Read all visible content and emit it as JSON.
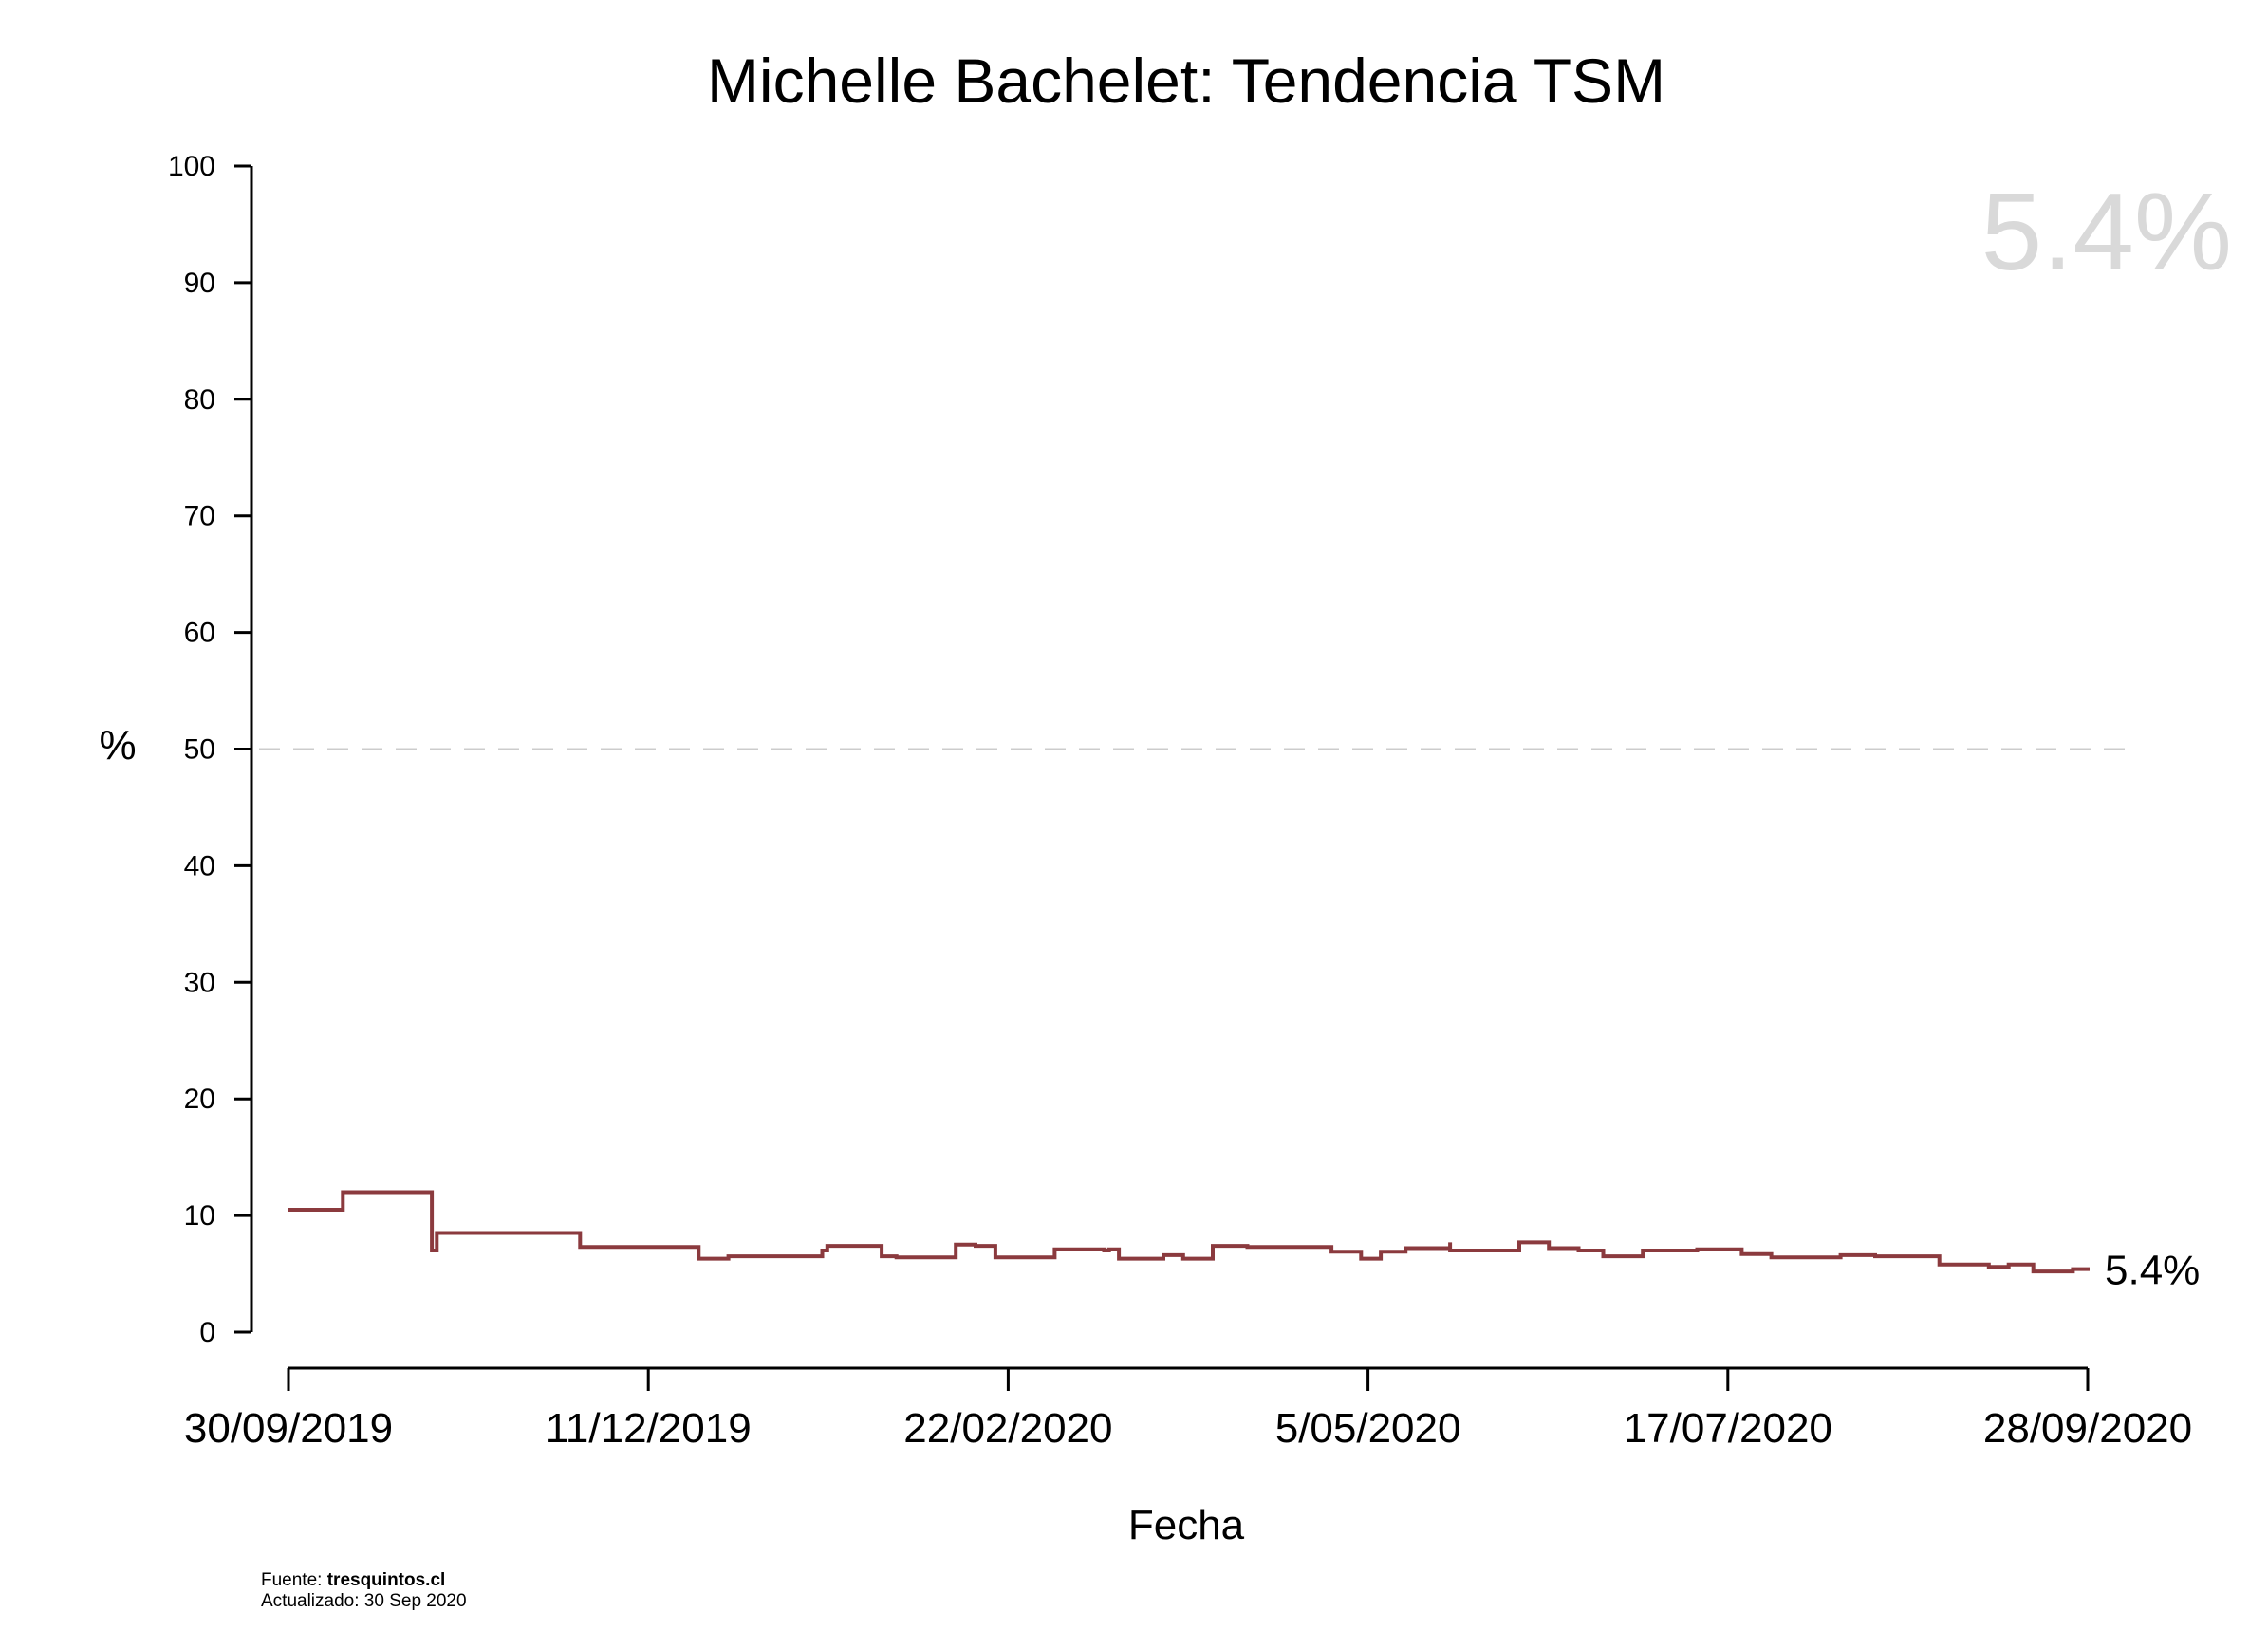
{
  "chart_data": {
    "type": "line",
    "title": "Michelle Bachelet: Tendencia TSM",
    "xlabel": "Fecha",
    "ylabel": "%",
    "ylim": [
      0,
      100
    ],
    "yticks": [
      0,
      10,
      20,
      30,
      40,
      50,
      60,
      70,
      80,
      90,
      100
    ],
    "xlim": [
      "2019-09-30",
      "2020-09-28"
    ],
    "xticks": [
      "30/09/2019",
      "11/12/2019",
      "22/02/2020",
      "5/05/2020",
      "17/07/2020",
      "28/09/2020"
    ],
    "reference_line": 50,
    "grid": false,
    "step": true,
    "line_color": "#8b3a3e",
    "headline_value": "5.4%",
    "end_label": "5.4%",
    "series": [
      {
        "x": [
          "2019-09-30",
          "2019-10-11",
          "2019-10-29",
          "2019-10-30",
          "2019-11-28",
          "2019-12-22",
          "2019-12-28",
          "2020-01-16",
          "2020-01-17",
          "2020-01-28",
          "2020-01-31",
          "2020-02-08",
          "2020-02-12",
          "2020-02-16",
          "2020-02-20",
          "2020-03-03",
          "2020-03-03",
          "2020-03-13",
          "2020-03-14",
          "2020-03-16",
          "2020-03-25",
          "2020-03-29",
          "2020-04-04",
          "2020-04-11",
          "2020-04-16",
          "2020-04-19",
          "2020-04-28",
          "2020-05-04",
          "2020-05-08",
          "2020-05-13",
          "2020-05-21",
          "2020-05-22",
          "2020-05-22",
          "2020-05-26",
          "2020-06-05",
          "2020-06-11",
          "2020-06-17",
          "2020-06-22",
          "2020-06-30",
          "2020-07-11",
          "2020-07-20",
          "2020-07-26",
          "2020-07-30",
          "2020-08-09",
          "2020-08-16",
          "2020-08-18",
          "2020-08-29",
          "2020-09-08",
          "2020-09-12",
          "2020-09-17",
          "2020-09-25"
        ],
        "y": [
          10.5,
          12.0,
          7.0,
          8.5,
          7.3,
          6.3,
          6.5,
          7.0,
          7.4,
          6.5,
          6.4,
          6.4,
          7.5,
          7.4,
          6.4,
          7.0,
          7.1,
          7.0,
          7.1,
          6.3,
          6.6,
          6.3,
          7.4,
          7.3,
          7.3,
          7.3,
          6.9,
          6.3,
          6.9,
          7.2,
          7.2,
          7.7,
          7.0,
          7.0,
          7.7,
          7.2,
          7.0,
          6.5,
          7.0,
          7.1,
          6.7,
          6.4,
          6.4,
          6.6,
          6.5,
          6.5,
          5.8,
          5.6,
          5.8,
          5.2,
          5.4
        ]
      }
    ]
  },
  "footer": {
    "source_prefix": "Fuente: ",
    "source_name": "tresquintos.cl",
    "updated": "Actualizado: 30 Sep 2020"
  }
}
